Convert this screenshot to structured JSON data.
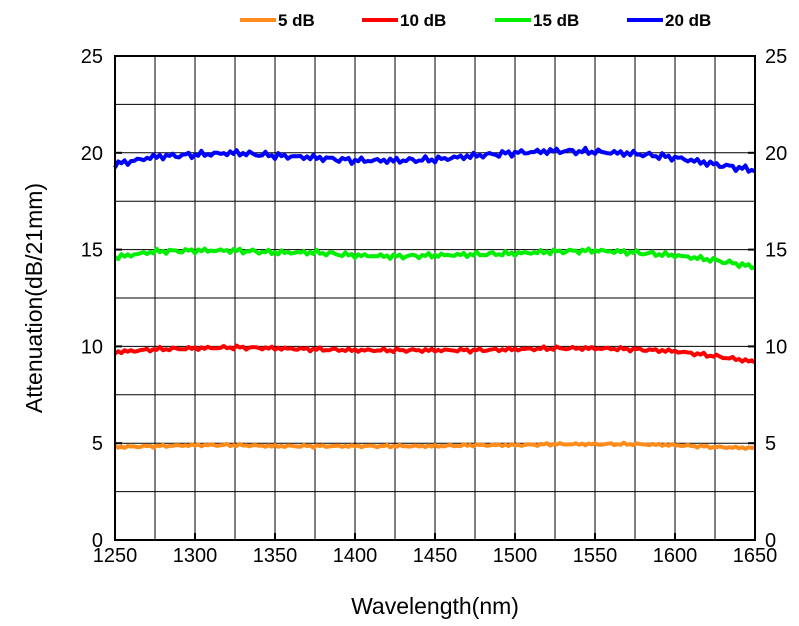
{
  "chart_data": {
    "type": "line",
    "title": "",
    "xlabel": "Wavelength(nm)",
    "ylabel": "Attenuation(dB/21mm)",
    "xlim": [
      1250,
      1650
    ],
    "ylim": [
      0,
      25
    ],
    "xticks": [
      "1250",
      "1300",
      "1350",
      "1400",
      "1450",
      "1500",
      "1550",
      "1600",
      "1650"
    ],
    "yticks": [
      "0",
      "5",
      "10",
      "15",
      "20",
      "25"
    ],
    "grid": true,
    "legend_position": "top",
    "series": [
      {
        "name": "5 dB",
        "color": "#ff8c1a",
        "x": [
          1250,
          1275,
          1300,
          1325,
          1350,
          1375,
          1400,
          1425,
          1450,
          1475,
          1500,
          1525,
          1550,
          1575,
          1600,
          1625,
          1650
        ],
        "y": [
          4.8,
          4.85,
          4.9,
          4.9,
          4.85,
          4.85,
          4.85,
          4.85,
          4.85,
          4.9,
          4.9,
          4.95,
          4.95,
          4.95,
          4.9,
          4.8,
          4.75
        ]
      },
      {
        "name": "10 dB",
        "color": "#ff0000",
        "x": [
          1250,
          1275,
          1300,
          1325,
          1350,
          1375,
          1400,
          1425,
          1450,
          1475,
          1500,
          1525,
          1550,
          1575,
          1600,
          1625,
          1650
        ],
        "y": [
          9.7,
          9.85,
          9.9,
          9.95,
          9.9,
          9.85,
          9.8,
          9.8,
          9.8,
          9.8,
          9.85,
          9.9,
          9.9,
          9.85,
          9.75,
          9.5,
          9.2
        ]
      },
      {
        "name": "15 dB",
        "color": "#00ee00",
        "x": [
          1250,
          1275,
          1300,
          1325,
          1350,
          1375,
          1400,
          1425,
          1450,
          1475,
          1500,
          1525,
          1550,
          1575,
          1600,
          1625,
          1650
        ],
        "y": [
          14.6,
          14.9,
          14.95,
          14.95,
          14.85,
          14.85,
          14.7,
          14.65,
          14.7,
          14.75,
          14.8,
          14.9,
          14.95,
          14.85,
          14.7,
          14.45,
          14.1
        ]
      },
      {
        "name": "20 dB",
        "color": "#0000ff",
        "x": [
          1250,
          1275,
          1300,
          1325,
          1350,
          1375,
          1400,
          1425,
          1450,
          1475,
          1500,
          1525,
          1550,
          1575,
          1600,
          1625,
          1650
        ],
        "y": [
          19.4,
          19.8,
          19.9,
          20.0,
          19.85,
          19.75,
          19.6,
          19.6,
          19.65,
          19.85,
          20.0,
          20.1,
          20.05,
          19.95,
          19.75,
          19.4,
          19.1
        ]
      }
    ]
  }
}
